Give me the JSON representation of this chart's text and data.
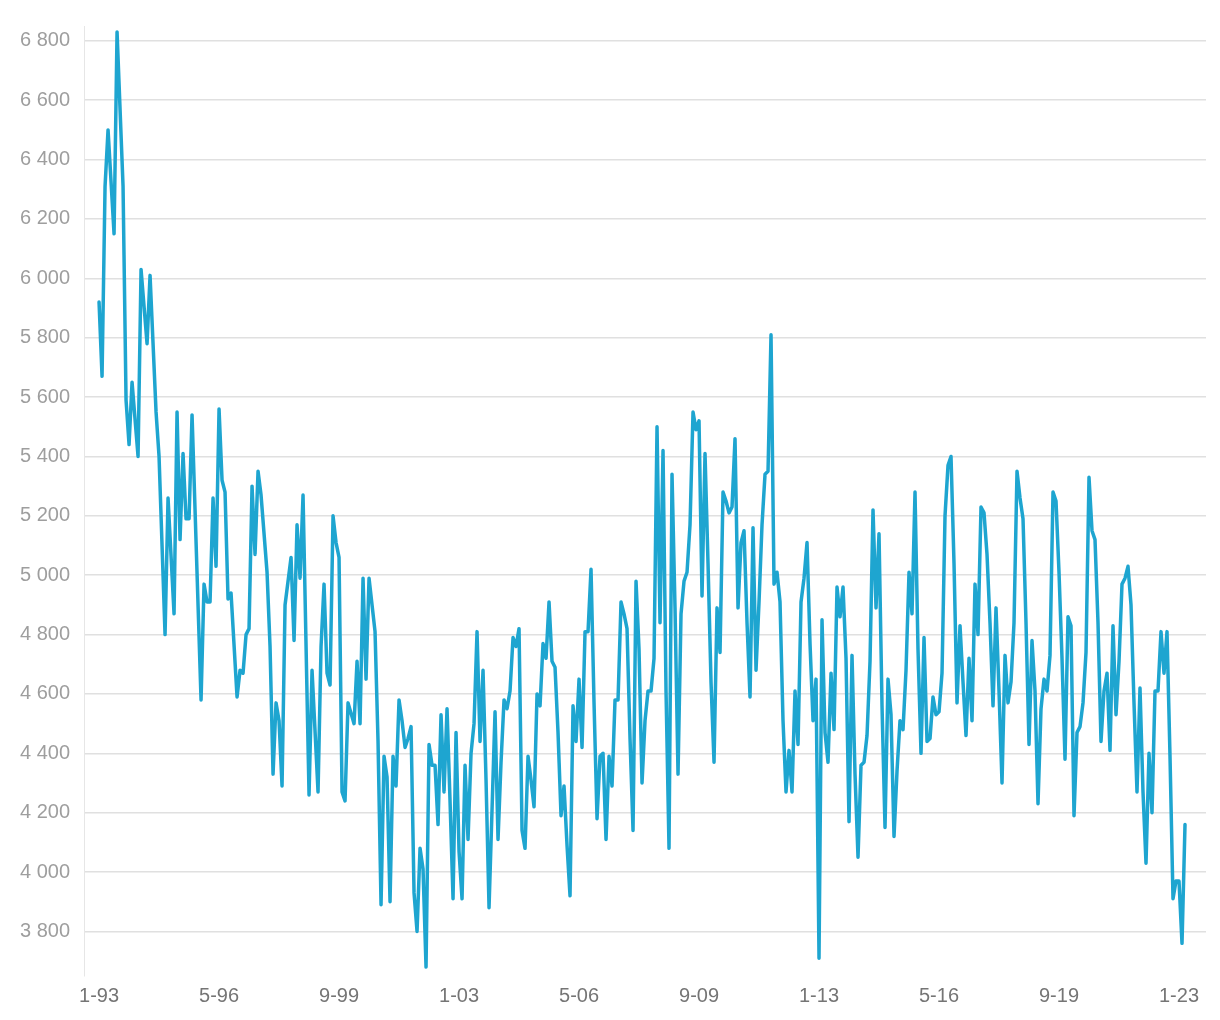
{
  "chart_data": {
    "type": "line",
    "x": [
      "1993-01",
      "1993-02",
      "1993-03",
      "1993-04",
      "1993-06",
      "1993-07",
      "1993-09",
      "1993-10",
      "1993-11",
      "1993-12",
      "1994-02",
      "1994-03",
      "1994-05",
      "1994-06",
      "1994-08",
      "1994-09",
      "1994-11",
      "1994-12",
      "1995-02",
      "1995-03",
      "1995-04",
      "1995-05",
      "1995-06",
      "1995-07",
      "1995-08",
      "1995-11",
      "1995-12",
      "1996-01",
      "1996-02",
      "1996-03",
      "1996-04",
      "1996-05",
      "1996-06",
      "1996-07",
      "1996-08",
      "1996-09",
      "1996-11",
      "1996-12",
      "1997-01",
      "1997-02",
      "1997-03",
      "1997-04",
      "1997-05",
      "1997-06",
      "1997-07",
      "1997-09",
      "1997-10",
      "1997-11",
      "1997-12",
      "1998-01",
      "1998-02",
      "1998-03",
      "1998-05",
      "1998-06",
      "1998-07",
      "1998-08",
      "1998-09",
      "1998-11",
      "1998-12",
      "1999-02",
      "1999-03",
      "1999-04",
      "1999-05",
      "1999-06",
      "1999-07",
      "1999-08",
      "1999-09",
      "1999-10",
      "1999-11",
      "1999-12",
      "2000-02",
      "2000-03",
      "2000-04",
      "2000-05",
      "2000-06",
      "2000-07",
      "2000-09",
      "2000-10",
      "2000-11",
      "2000-12",
      "2001-01",
      "2001-02",
      "2001-03",
      "2001-04",
      "2001-05",
      "2001-06",
      "2001-07",
      "2001-08",
      "2001-09",
      "2001-10",
      "2001-11",
      "2001-12",
      "2002-01",
      "2002-02",
      "2002-03",
      "2002-04",
      "2002-05",
      "2002-06",
      "2002-07",
      "2002-08",
      "2002-09",
      "2002-10",
      "2002-11",
      "2002-12",
      "2003-01",
      "2003-02",
      "2003-03",
      "2003-04",
      "2003-05",
      "2003-06",
      "2003-07",
      "2003-08",
      "2003-09",
      "2003-10",
      "2003-11",
      "2004-01",
      "2004-02",
      "2004-03",
      "2004-04",
      "2004-05",
      "2004-06",
      "2004-07",
      "2004-08",
      "2004-09",
      "2004-10",
      "2004-11",
      "2004-12",
      "2005-01",
      "2005-02",
      "2005-03",
      "2005-04",
      "2005-05",
      "2005-06",
      "2005-07",
      "2005-08",
      "2005-09",
      "2005-10",
      "2005-11",
      "2005-12",
      "2006-01",
      "2006-02",
      "2006-03",
      "2006-04",
      "2006-05",
      "2006-06",
      "2006-07",
      "2006-08",
      "2006-09",
      "2006-10",
      "2006-11",
      "2006-12",
      "2007-01",
      "2007-02",
      "2007-03",
      "2007-04",
      "2007-05",
      "2007-06",
      "2007-07",
      "2007-08",
      "2007-09",
      "2007-10",
      "2007-11",
      "2007-12",
      "2008-01",
      "2008-02",
      "2008-03",
      "2008-04",
      "2008-05",
      "2008-06",
      "2008-07",
      "2008-08",
      "2008-09",
      "2008-10",
      "2008-11",
      "2008-12",
      "2009-01",
      "2009-02",
      "2009-03",
      "2009-04",
      "2009-05",
      "2009-06",
      "2009-07",
      "2009-08",
      "2009-09",
      "2009-10",
      "2009-11",
      "2009-12",
      "2010-01",
      "2010-02",
      "2010-03",
      "2010-04",
      "2010-05",
      "2010-06",
      "2010-07",
      "2010-08",
      "2010-09",
      "2010-10",
      "2010-11",
      "2010-12",
      "2011-01",
      "2011-02",
      "2011-03",
      "2011-04",
      "2011-05",
      "2011-06",
      "2011-07",
      "2011-08",
      "2011-09",
      "2011-10",
      "2011-11",
      "2011-12",
      "2012-01",
      "2012-02",
      "2012-03",
      "2012-04",
      "2012-05",
      "2012-06",
      "2012-07",
      "2012-08",
      "2012-09",
      "2012-10",
      "2012-11",
      "2012-12",
      "2013-01",
      "2013-02",
      "2013-03",
      "2013-04",
      "2013-05",
      "2013-06",
      "2013-07",
      "2013-08",
      "2013-09",
      "2013-10",
      "2013-11",
      "2013-12",
      "2014-01",
      "2014-02",
      "2014-03",
      "2014-04",
      "2014-05",
      "2014-06",
      "2014-07",
      "2014-08",
      "2014-09",
      "2014-10",
      "2014-11",
      "2014-12",
      "2015-01",
      "2015-02",
      "2015-03",
      "2015-04",
      "2015-05",
      "2015-06",
      "2015-07",
      "2015-08",
      "2015-09",
      "2015-10",
      "2015-11",
      "2015-12",
      "2016-01",
      "2016-02",
      "2016-03",
      "2016-04",
      "2016-05",
      "2016-06",
      "2016-07",
      "2016-08",
      "2016-09",
      "2016-10",
      "2016-11",
      "2016-12",
      "2017-01",
      "2017-02",
      "2017-03",
      "2017-04",
      "2017-05",
      "2017-06",
      "2017-07",
      "2017-08",
      "2017-09",
      "2017-10",
      "2017-11",
      "2017-12",
      "2018-01",
      "2018-02",
      "2018-03",
      "2018-04",
      "2018-05",
      "2018-06",
      "2018-07",
      "2018-08",
      "2018-09",
      "2018-10",
      "2018-11",
      "2018-12",
      "2019-01",
      "2019-02",
      "2019-03",
      "2019-04",
      "2019-05",
      "2019-06",
      "2019-07",
      "2019-08",
      "2019-09",
      "2019-10",
      "2019-11",
      "2019-12",
      "2020-01",
      "2020-02",
      "2020-03",
      "2020-04",
      "2020-05",
      "2020-06",
      "2020-07",
      "2020-08",
      "2020-09",
      "2020-10",
      "2020-11",
      "2020-12",
      "2021-01",
      "2021-02",
      "2021-03",
      "2021-04",
      "2021-05",
      "2021-06",
      "2021-07",
      "2021-08",
      "2021-09",
      "2021-10",
      "2021-11",
      "2021-12",
      "2022-01",
      "2022-02",
      "2022-03",
      "2022-04",
      "2022-05",
      "2022-06",
      "2022-07",
      "2022-08",
      "2022-09",
      "2022-10",
      "2022-11",
      "2022-12",
      "2023-01",
      "2023-02",
      "2023-03"
    ],
    "series": [
      {
        "color": "#1ea5d0",
        "values": [
          5920,
          5670,
          6310,
          6500,
          6150,
          6830,
          6310,
          5590,
          5440,
          5650,
          5400,
          6030,
          5780,
          6010,
          5550,
          5400,
          4800,
          5260,
          4870,
          5550,
          5120,
          5410,
          5190,
          5190,
          5540,
          4580,
          4970,
          4910,
          4910,
          5260,
          5030,
          5560,
          5320,
          5280,
          4920,
          4940,
          4590,
          4680,
          4670,
          4800,
          4820,
          5300,
          5070,
          5350,
          5270,
          5010,
          4760,
          4330,
          4570,
          4510,
          4290,
          4900,
          5060,
          4780,
          5170,
          4990,
          5270,
          4260,
          4680,
          4270,
          4760,
          4970,
          4670,
          4630,
          5200,
          5110,
          5060,
          4270,
          4240,
          4570,
          4500,
          4710,
          4500,
          4990,
          4650,
          4990,
          4810,
          4440,
          3890,
          4390,
          4320,
          3900,
          4390,
          4290,
          4580,
          4510,
          4420,
          4450,
          4490,
          3930,
          3800,
          4080,
          4010,
          3680,
          4430,
          4360,
          4360,
          4160,
          4530,
          4270,
          4550,
          4240,
          3910,
          4470,
          4070,
          3910,
          4360,
          4110,
          4400,
          4500,
          4810,
          4440,
          4680,
          4310,
          3880,
          4540,
          4110,
          4370,
          4580,
          4550,
          4610,
          4790,
          4760,
          4820,
          4140,
          4080,
          4390,
          4310,
          4220,
          4600,
          4560,
          4770,
          4720,
          4910,
          4710,
          4690,
          4470,
          4190,
          4290,
          4090,
          3920,
          4560,
          4440,
          4650,
          4420,
          4810,
          4810,
          5020,
          4570,
          4180,
          4390,
          4400,
          4110,
          4390,
          4290,
          4580,
          4580,
          4910,
          4870,
          4820,
          4450,
          4140,
          4980,
          4750,
          4300,
          4510,
          4610,
          4610,
          4720,
          5500,
          4840,
          5420,
          4610,
          4080,
          5340,
          4890,
          4330,
          4870,
          4980,
          5010,
          5170,
          5550,
          5490,
          5520,
          4930,
          5410,
          5040,
          4640,
          4370,
          4890,
          4740,
          5280,
          5250,
          5210,
          5230,
          5460,
          4890,
          5110,
          5150,
          4840,
          4590,
          5160,
          4680,
          4910,
          5170,
          5340,
          5350,
          5810,
          4970,
          5010,
          4910,
          4510,
          4270,
          4410,
          4270,
          4610,
          4430,
          4910,
          4990,
          5110,
          4770,
          4510,
          4650,
          3710,
          4850,
          4470,
          4370,
          4670,
          4480,
          4960,
          4860,
          4960,
          4720,
          4170,
          4730,
          4330,
          4050,
          4360,
          4370,
          4460,
          4710,
          5220,
          4890,
          5140,
          4560,
          4150,
          4650,
          4530,
          4120,
          4340,
          4510,
          4480,
          4680,
          5010,
          4870,
          5280,
          4750,
          4400,
          4790,
          4440,
          4450,
          4590,
          4530,
          4540,
          4670,
          5200,
          5370,
          5400,
          5040,
          4570,
          4830,
          4640,
          4460,
          4720,
          4510,
          4970,
          4800,
          5230,
          5210,
          5070,
          4840,
          4560,
          4890,
          4610,
          4300,
          4730,
          4570,
          4640,
          4840,
          5350,
          5260,
          5190,
          4840,
          4430,
          4780,
          4610,
          4230,
          4550,
          4650,
          4610,
          4730,
          5280,
          5250,
          5010,
          4720,
          4380,
          4860,
          4830,
          4190,
          4470,
          4490,
          4570,
          4740,
          5330,
          5150,
          5120,
          4840,
          4440,
          4610,
          4670,
          4410,
          4830,
          4530,
          4710,
          4970,
          4990,
          5030,
          4900,
          4570,
          4270,
          4620,
          4270,
          4030,
          4400,
          4200,
          4610,
          4610,
          4810,
          4670,
          4810,
          4390,
          3910,
          3970,
          3970,
          3760,
          4160
        ]
      }
    ],
    "xlim": [
      "1992-08",
      "2023-10"
    ],
    "xticks": [
      {
        "value": "1993-01",
        "label": "1-93"
      },
      {
        "value": "1996-05",
        "label": "5-96"
      },
      {
        "value": "1999-09",
        "label": "9-99"
      },
      {
        "value": "2003-01",
        "label": "1-03"
      },
      {
        "value": "2006-05",
        "label": "5-06"
      },
      {
        "value": "2009-09",
        "label": "9-09"
      },
      {
        "value": "2013-01",
        "label": "1-13"
      },
      {
        "value": "2016-05",
        "label": "5-16"
      },
      {
        "value": "2019-09",
        "label": "9-19"
      },
      {
        "value": "2023-01",
        "label": "1-23"
      }
    ],
    "ylim": [
      3650,
      6850
    ],
    "yticks": [
      {
        "value": 3800,
        "label": "3 800"
      },
      {
        "value": 4000,
        "label": "4 000"
      },
      {
        "value": 4200,
        "label": "4 200"
      },
      {
        "value": 4400,
        "label": "4 400"
      },
      {
        "value": 4600,
        "label": "4 600"
      },
      {
        "value": 4800,
        "label": "4 800"
      },
      {
        "value": 5000,
        "label": "5 000"
      },
      {
        "value": 5200,
        "label": "5 200"
      },
      {
        "value": 5400,
        "label": "5 400"
      },
      {
        "value": 5600,
        "label": "5 600"
      },
      {
        "value": 5800,
        "label": "5 800"
      },
      {
        "value": 6000,
        "label": "6 000"
      },
      {
        "value": 6200,
        "label": "6 200"
      },
      {
        "value": 6400,
        "label": "6 400"
      },
      {
        "value": 6600,
        "label": "6 600"
      },
      {
        "value": 6800,
        "label": "6 800"
      }
    ],
    "grid": "y",
    "marker": "none",
    "line_style": "solid"
  }
}
